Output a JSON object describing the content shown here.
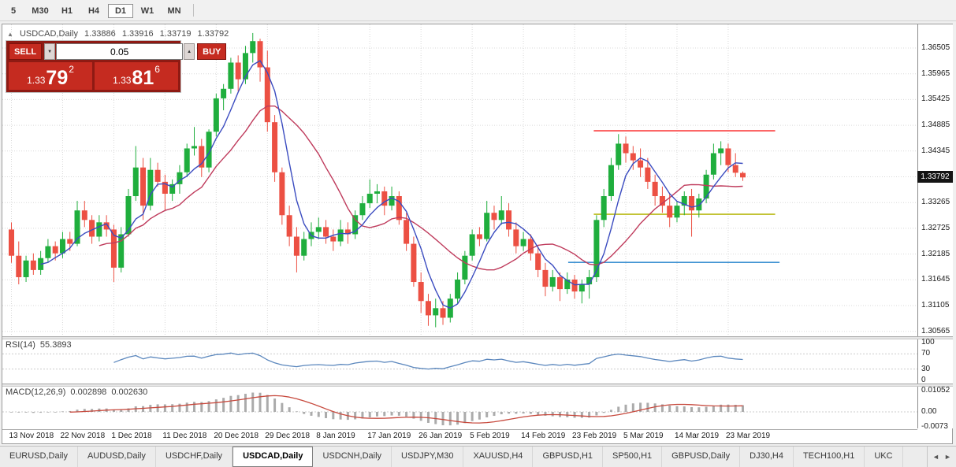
{
  "toolbar": {
    "timeframes": [
      "5",
      "M30",
      "H1",
      "H4",
      "D1",
      "W1",
      "MN"
    ],
    "active": "D1"
  },
  "chart_header": {
    "symbol": "USDCAD,Daily",
    "open": "1.33886",
    "high": "1.33916",
    "low": "1.33719",
    "close": "1.33792"
  },
  "icons": {
    "chart": "▲",
    "spinner_up": "▲",
    "spinner_down": "▼",
    "scroll_left": "◄",
    "scroll_right": "►"
  },
  "one_click": {
    "sell_label": "SELL",
    "buy_label": "BUY",
    "volume": "0.05",
    "sell_price_big": "1.33",
    "sell_price_pips": "79",
    "sell_price_pipette": "2",
    "buy_price_big": "1.33",
    "buy_price_pips": "81",
    "buy_price_pipette": "6"
  },
  "price_axis": {
    "labels": [
      "1.36505",
      "1.35965",
      "1.35425",
      "1.34885",
      "1.34345",
      "1.33805",
      "1.33265",
      "1.32725",
      "1.32185",
      "1.31645",
      "1.31105",
      "1.30565"
    ],
    "current": "1.33792"
  },
  "indicators": {
    "rsi": {
      "name": "RSI(14)",
      "value": "55.3893",
      "axis_labels": [
        "100",
        "70",
        "30",
        "0"
      ],
      "axis_values": [
        100,
        70,
        30,
        0
      ],
      "levels": [
        70,
        30
      ],
      "color": "#5b87bd"
    },
    "macd": {
      "name": "MACD(12,26,9)",
      "main_value": "0.002898",
      "signal_value": "0.002630",
      "axis_labels": [
        "0.01052",
        "0.00",
        "-0.0073"
      ],
      "axis_values": [
        0.01052,
        0,
        -0.0073
      ],
      "histogram_color": "#ababab",
      "signal_color": "#c7493d"
    }
  },
  "chart_data": {
    "type": "candlestick",
    "symbol": "USDCAD",
    "timeframe": "Daily",
    "bull_color": "#1fae3d",
    "bear_color": "#ec5043",
    "y_gridlines": [
      1.36505,
      1.35965,
      1.35425,
      1.34885,
      1.34345,
      1.33805,
      1.33265,
      1.32725,
      1.32185,
      1.31645,
      1.31105,
      1.30565
    ],
    "x_labels": [
      {
        "text": "13 Nov 2018",
        "candle": 0
      },
      {
        "text": "22 Nov 2018",
        "candle": 7
      },
      {
        "text": "1 Dec 2018",
        "candle": 14
      },
      {
        "text": "11 Dec 2018",
        "candle": 21
      },
      {
        "text": "20 Dec 2018",
        "candle": 28
      },
      {
        "text": "29 Dec 2018",
        "candle": 35
      },
      {
        "text": "8 Jan 2019",
        "candle": 42
      },
      {
        "text": "17 Jan 2019",
        "candle": 49
      },
      {
        "text": "26 Jan 2019",
        "candle": 56
      },
      {
        "text": "5 Feb 2019",
        "candle": 63
      },
      {
        "text": "14 Feb 2019",
        "candle": 70
      },
      {
        "text": "23 Feb 2019",
        "candle": 77
      },
      {
        "text": "5 Mar 2019",
        "candle": 84
      },
      {
        "text": "14 Mar 2019",
        "candle": 91
      },
      {
        "text": "23 Mar 2019",
        "candle": 98
      }
    ],
    "overlays": {
      "ma_fast": {
        "period": 5,
        "color": "#3b4cc0"
      },
      "ma_slow": {
        "period": 13,
        "color": "#bf3b5c"
      }
    },
    "hlines": [
      {
        "price": 1.3477,
        "color": "#fb3c3c",
        "from_candle": 80,
        "to_candle": 104.8
      },
      {
        "price": 1.3302,
        "color": "#b9ba16",
        "from_candle": 80,
        "to_candle": 104.8
      },
      {
        "price": 1.3201,
        "color": "#3f92d2",
        "from_candle": 76.5,
        "to_candle": 105.4
      }
    ],
    "candles": [
      [
        1.327,
        1.3285,
        1.32,
        1.3215
      ],
      [
        1.3215,
        1.3245,
        1.3155,
        1.317
      ],
      [
        1.317,
        1.3215,
        1.316,
        1.3205
      ],
      [
        1.3205,
        1.322,
        1.3175,
        1.3185
      ],
      [
        1.3185,
        1.3225,
        1.3175,
        1.321
      ],
      [
        1.321,
        1.325,
        1.32,
        1.3235
      ],
      [
        1.3235,
        1.3245,
        1.3205,
        1.322
      ],
      [
        1.322,
        1.3265,
        1.321,
        1.325
      ],
      [
        1.325,
        1.3265,
        1.3225,
        1.324
      ],
      [
        1.324,
        1.333,
        1.3235,
        1.331
      ],
      [
        1.331,
        1.333,
        1.3275,
        1.329
      ],
      [
        1.329,
        1.33,
        1.324,
        1.3255
      ],
      [
        1.3255,
        1.33,
        1.3245,
        1.3285
      ],
      [
        1.3285,
        1.33,
        1.3255,
        1.327
      ],
      [
        1.327,
        1.328,
        1.316,
        1.319
      ],
      [
        1.319,
        1.3275,
        1.318,
        1.326
      ],
      [
        1.326,
        1.3355,
        1.3255,
        1.334
      ],
      [
        1.334,
        1.3445,
        1.333,
        1.34
      ],
      [
        1.34,
        1.342,
        1.329,
        1.332
      ],
      [
        1.332,
        1.342,
        1.331,
        1.3395
      ],
      [
        1.3395,
        1.341,
        1.336,
        1.337
      ],
      [
        1.337,
        1.3385,
        1.331,
        1.3345
      ],
      [
        1.3345,
        1.3375,
        1.333,
        1.3365
      ],
      [
        1.3365,
        1.3405,
        1.3345,
        1.339
      ],
      [
        1.339,
        1.345,
        1.338,
        1.344
      ],
      [
        1.344,
        1.3485,
        1.3425,
        1.3445
      ],
      [
        1.3445,
        1.346,
        1.338,
        1.34
      ],
      [
        1.34,
        1.348,
        1.339,
        1.3475
      ],
      [
        1.3475,
        1.3555,
        1.3465,
        1.3545
      ],
      [
        1.3545,
        1.3575,
        1.352,
        1.3565
      ],
      [
        1.3565,
        1.363,
        1.3555,
        1.362
      ],
      [
        1.362,
        1.3635,
        1.356,
        1.3585
      ],
      [
        1.3585,
        1.3655,
        1.3575,
        1.364
      ],
      [
        1.364,
        1.3682,
        1.362,
        1.3665
      ],
      [
        1.3665,
        1.367,
        1.358,
        1.361
      ],
      [
        1.361,
        1.3645,
        1.3475,
        1.3495
      ],
      [
        1.3495,
        1.351,
        1.337,
        1.339
      ],
      [
        1.339,
        1.34,
        1.328,
        1.33
      ],
      [
        1.33,
        1.332,
        1.3235,
        1.3255
      ],
      [
        1.3255,
        1.3275,
        1.318,
        1.3215
      ],
      [
        1.3215,
        1.3265,
        1.3205,
        1.325
      ],
      [
        1.325,
        1.3285,
        1.3235,
        1.3265
      ],
      [
        1.3265,
        1.3295,
        1.325,
        1.3275
      ],
      [
        1.3275,
        1.329,
        1.324,
        1.3255
      ],
      [
        1.3255,
        1.327,
        1.3225,
        1.3245
      ],
      [
        1.3245,
        1.329,
        1.3235,
        1.327
      ],
      [
        1.327,
        1.3285,
        1.324,
        1.326
      ],
      [
        1.326,
        1.331,
        1.325,
        1.33
      ],
      [
        1.33,
        1.334,
        1.329,
        1.3325
      ],
      [
        1.3325,
        1.3375,
        1.3315,
        1.3345
      ],
      [
        1.3345,
        1.3365,
        1.3325,
        1.335
      ],
      [
        1.335,
        1.336,
        1.33,
        1.332
      ],
      [
        1.332,
        1.336,
        1.331,
        1.334
      ],
      [
        1.334,
        1.335,
        1.328,
        1.329
      ],
      [
        1.329,
        1.3305,
        1.3225,
        1.324
      ],
      [
        1.324,
        1.3255,
        1.315,
        1.316
      ],
      [
        1.316,
        1.318,
        1.3095,
        1.312
      ],
      [
        1.312,
        1.3135,
        1.3068,
        1.309
      ],
      [
        1.309,
        1.3125,
        1.3065,
        1.3105
      ],
      [
        1.3105,
        1.312,
        1.307,
        1.3085
      ],
      [
        1.3085,
        1.3135,
        1.3075,
        1.3125
      ],
      [
        1.3125,
        1.318,
        1.3115,
        1.3165
      ],
      [
        1.3165,
        1.3225,
        1.3155,
        1.3215
      ],
      [
        1.3215,
        1.327,
        1.3205,
        1.326
      ],
      [
        1.326,
        1.3275,
        1.3235,
        1.325
      ],
      [
        1.325,
        1.333,
        1.3245,
        1.3305
      ],
      [
        1.3305,
        1.332,
        1.327,
        1.329
      ],
      [
        1.329,
        1.334,
        1.328,
        1.331
      ],
      [
        1.331,
        1.3325,
        1.3255,
        1.327
      ],
      [
        1.327,
        1.3285,
        1.322,
        1.3235
      ],
      [
        1.3235,
        1.3265,
        1.3225,
        1.325
      ],
      [
        1.325,
        1.326,
        1.3205,
        1.322
      ],
      [
        1.322,
        1.3235,
        1.317,
        1.3185
      ],
      [
        1.3185,
        1.32,
        1.313,
        1.315
      ],
      [
        1.315,
        1.3185,
        1.314,
        1.317
      ],
      [
        1.317,
        1.318,
        1.312,
        1.3145
      ],
      [
        1.3145,
        1.318,
        1.3135,
        1.3165
      ],
      [
        1.3165,
        1.3175,
        1.3125,
        1.314
      ],
      [
        1.314,
        1.3165,
        1.3115,
        1.3155
      ],
      [
        1.3155,
        1.3185,
        1.3125,
        1.317
      ],
      [
        1.317,
        1.33,
        1.316,
        1.329
      ],
      [
        1.329,
        1.3355,
        1.3275,
        1.334
      ],
      [
        1.334,
        1.342,
        1.333,
        1.3405
      ],
      [
        1.3405,
        1.347,
        1.3395,
        1.345
      ],
      [
        1.345,
        1.3465,
        1.341,
        1.343
      ],
      [
        1.343,
        1.3445,
        1.3395,
        1.3415
      ],
      [
        1.3415,
        1.344,
        1.338,
        1.34
      ],
      [
        1.34,
        1.342,
        1.3355,
        1.337
      ],
      [
        1.337,
        1.3385,
        1.332,
        1.334
      ],
      [
        1.334,
        1.336,
        1.3305,
        1.332
      ],
      [
        1.332,
        1.3345,
        1.3275,
        1.3295
      ],
      [
        1.3295,
        1.333,
        1.3285,
        1.332
      ],
      [
        1.332,
        1.335,
        1.33,
        1.334
      ],
      [
        1.334,
        1.3355,
        1.3255,
        1.331
      ],
      [
        1.331,
        1.3345,
        1.3295,
        1.3335
      ],
      [
        1.3335,
        1.3395,
        1.3325,
        1.3385
      ],
      [
        1.3385,
        1.345,
        1.3375,
        1.343
      ],
      [
        1.343,
        1.3455,
        1.3405,
        1.344
      ],
      [
        1.344,
        1.345,
        1.339,
        1.3405
      ],
      [
        1.3405,
        1.343,
        1.338,
        1.3389
      ],
      [
        1.33886,
        1.33916,
        1.33719,
        1.33792
      ]
    ]
  },
  "tabs": {
    "items": [
      "EURUSD,Daily",
      "AUDUSD,Daily",
      "USDCHF,Daily",
      "USDCAD,Daily",
      "USDCNH,Daily",
      "USDJPY,M30",
      "XAUUSD,H4",
      "GBPUSD,H1",
      "SP500,H1",
      "GBPUSD,Daily",
      "DJ30,H4",
      "TECH100,H1",
      "UKC"
    ],
    "active_index": 3
  }
}
